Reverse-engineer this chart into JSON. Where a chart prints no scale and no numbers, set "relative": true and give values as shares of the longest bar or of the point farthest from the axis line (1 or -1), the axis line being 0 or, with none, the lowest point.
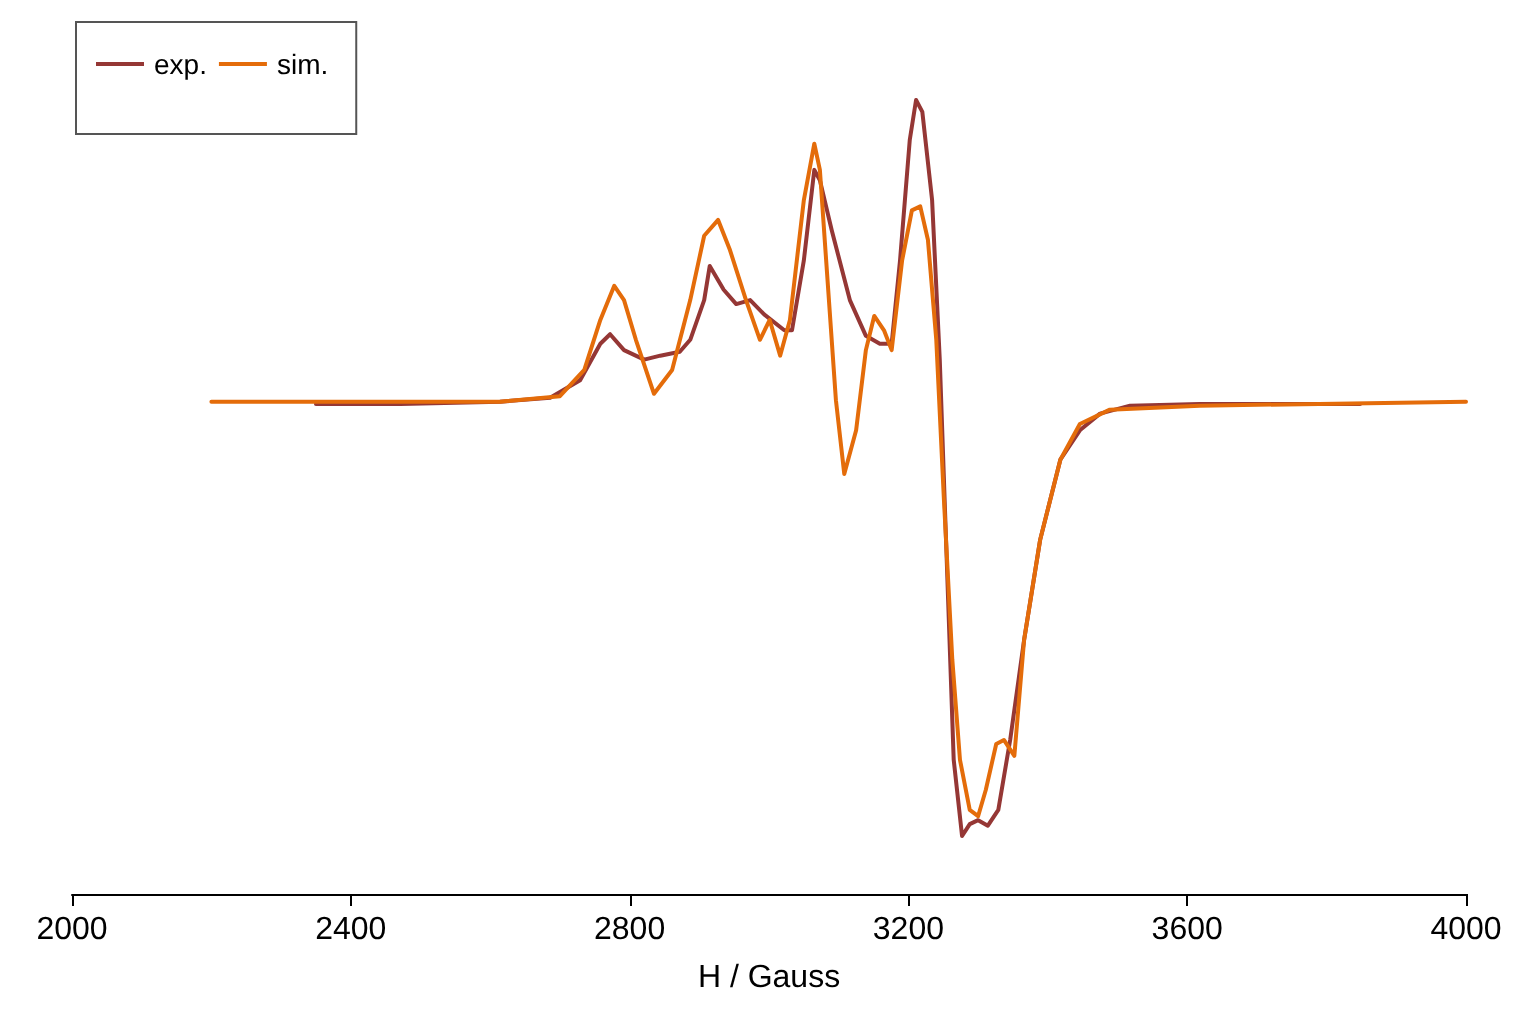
{
  "chart_data": {
    "type": "line",
    "relative": true,
    "xlabel": "H / Gauss",
    "xlim": [
      2000,
      4000
    ],
    "xticks": [
      2000,
      2400,
      2800,
      3200,
      3600,
      4000
    ],
    "grid": false,
    "legend": "top left",
    "marker": "none",
    "line_style": "solid",
    "series": [
      {
        "name": "exp.",
        "color": "#953735",
        "x": [
          2350,
          2471,
          2614,
          2686,
          2729,
          2758,
          2772,
          2792,
          2821,
          2844,
          2872,
          2887,
          2907,
          2915,
          2935,
          2953,
          2973,
          2993,
          3022,
          3033,
          3050,
          3065,
          3073,
          3090,
          3116,
          3139,
          3159,
          3176,
          3188,
          3202,
          3211,
          3220,
          3234,
          3245,
          3257,
          3265,
          3277,
          3288,
          3300,
          3314,
          3329,
          3346,
          3366,
          3389,
          3418,
          3446,
          3475,
          3518,
          3618,
          3848
        ],
        "values": [
          0.617,
          0.617,
          0.62,
          0.625,
          0.647,
          0.693,
          0.705,
          0.685,
          0.673,
          0.678,
          0.683,
          0.698,
          0.748,
          0.791,
          0.761,
          0.743,
          0.748,
          0.73,
          0.71,
          0.71,
          0.798,
          0.912,
          0.899,
          0.836,
          0.748,
          0.703,
          0.693,
          0.693,
          0.798,
          0.95,
          1.0,
          0.985,
          0.874,
          0.673,
          0.37,
          0.169,
          0.073,
          0.088,
          0.093,
          0.086,
          0.106,
          0.194,
          0.32,
          0.446,
          0.547,
          0.584,
          0.605,
          0.615,
          0.617,
          0.617
        ]
      },
      {
        "name": "sim.",
        "color": "#e46c0a",
        "x": [
          2200,
          2614,
          2700,
          2735,
          2758,
          2778,
          2792,
          2809,
          2835,
          2861,
          2887,
          2907,
          2927,
          2944,
          2967,
          2987,
          3001,
          3016,
          3030,
          3050,
          3065,
          3073,
          3082,
          3096,
          3108,
          3125,
          3139,
          3151,
          3165,
          3176,
          3191,
          3205,
          3217,
          3228,
          3240,
          3251,
          3263,
          3274,
          3288,
          3300,
          3311,
          3326,
          3337,
          3352,
          3366,
          3389,
          3418,
          3446,
          3489,
          3618,
          4000
        ],
        "values": [
          0.62,
          0.62,
          0.627,
          0.66,
          0.723,
          0.766,
          0.748,
          0.698,
          0.63,
          0.66,
          0.748,
          0.829,
          0.849,
          0.811,
          0.748,
          0.698,
          0.723,
          0.678,
          0.723,
          0.874,
          0.945,
          0.912,
          0.798,
          0.622,
          0.529,
          0.584,
          0.685,
          0.728,
          0.71,
          0.685,
          0.798,
          0.861,
          0.866,
          0.824,
          0.698,
          0.496,
          0.295,
          0.169,
          0.106,
          0.098,
          0.131,
          0.189,
          0.194,
          0.174,
          0.32,
          0.446,
          0.547,
          0.592,
          0.61,
          0.615,
          0.62
        ]
      }
    ]
  }
}
